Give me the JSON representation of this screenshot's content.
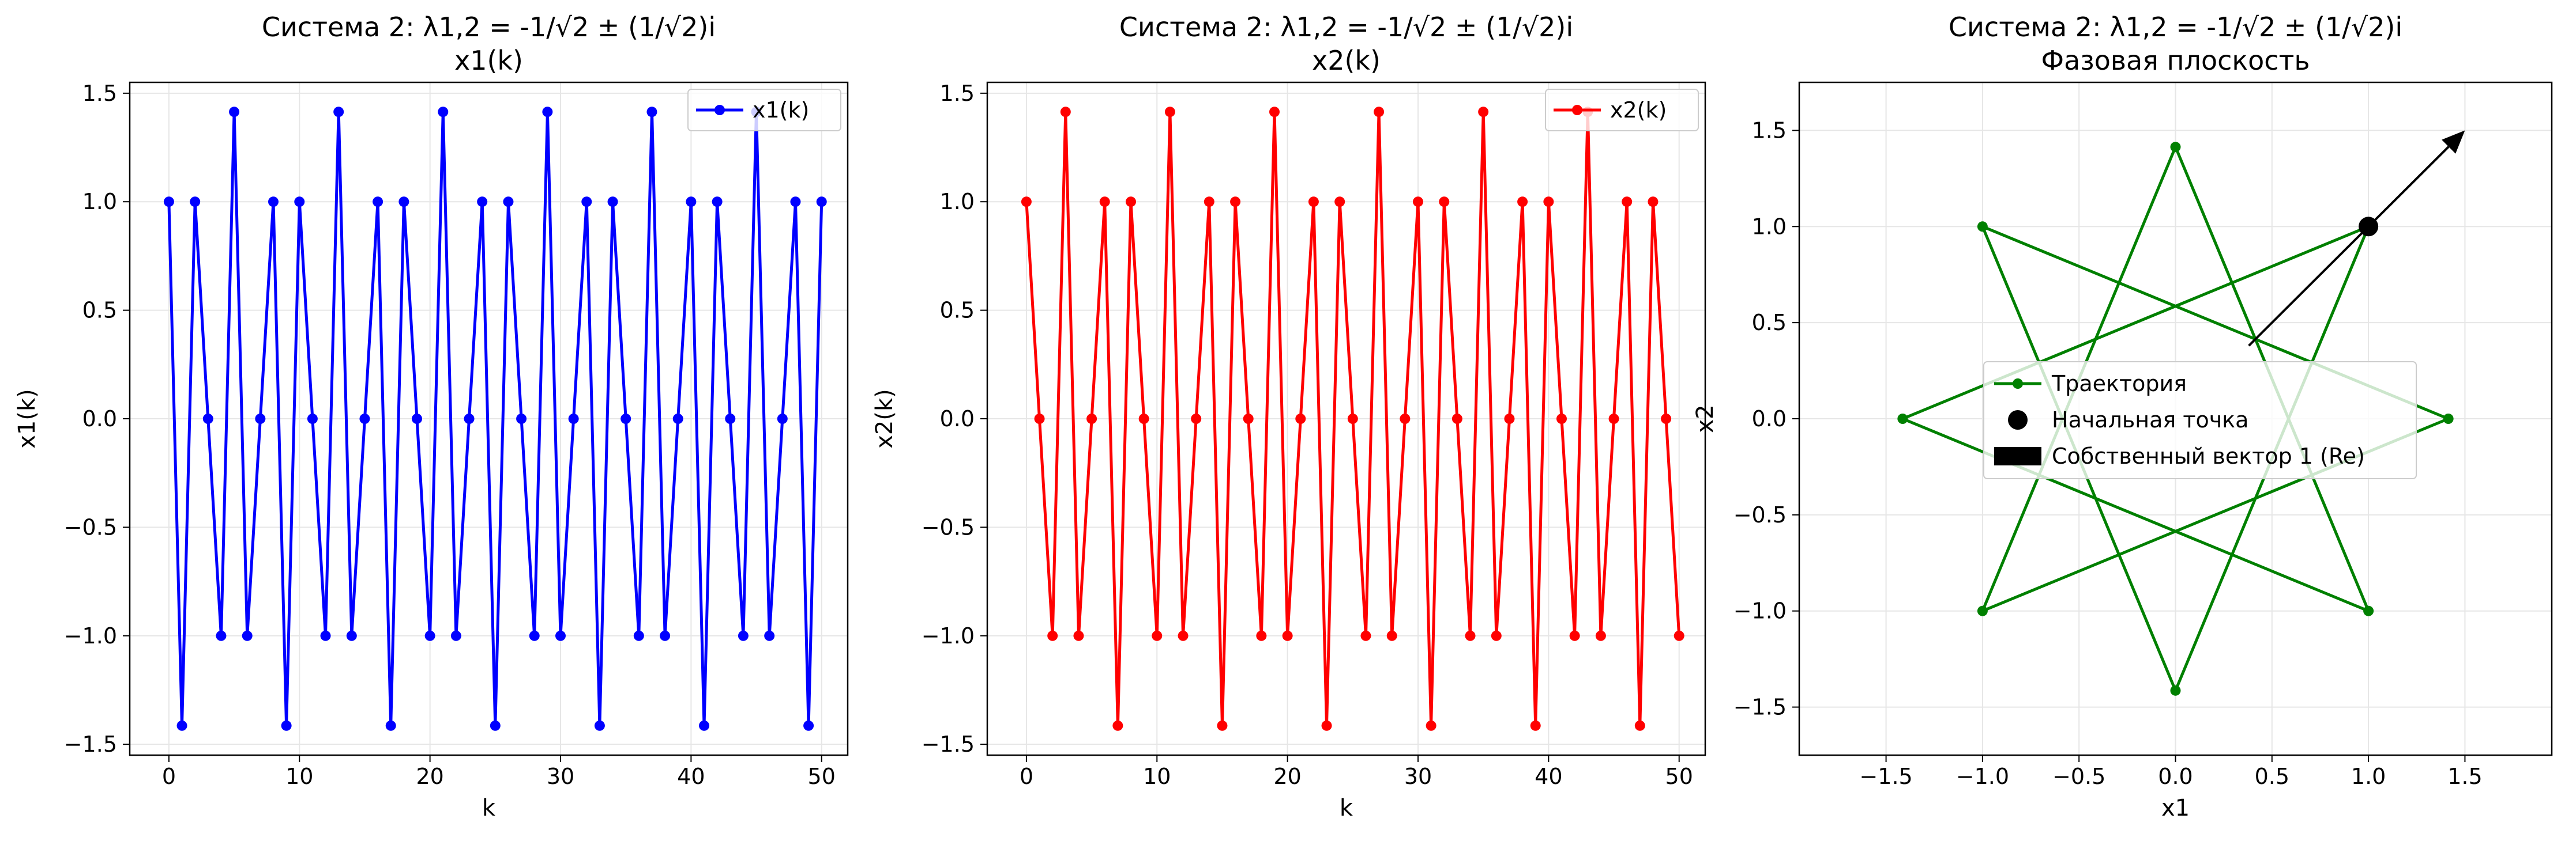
{
  "chart_data": [
    {
      "type": "line",
      "title": "Система 2: λ1,2 = -1/√2 ± (1/√2)i",
      "subtitle": "x1(k)",
      "xlabel": "k",
      "ylabel": "x1(k)",
      "xlim": [
        -3,
        52
      ],
      "ylim": [
        -1.55,
        1.55
      ],
      "xticks": [
        0,
        10,
        20,
        30,
        40,
        50
      ],
      "yticks": [
        -1.5,
        -1.0,
        -0.5,
        0.0,
        0.5,
        1.0,
        1.5
      ],
      "grid": true,
      "legend_position": "top-right",
      "series": [
        {
          "name": "x1(k)",
          "color": "#0000ff",
          "x": [
            0,
            1,
            2,
            3,
            4,
            5,
            6,
            7,
            8,
            9,
            10,
            11,
            12,
            13,
            14,
            15,
            16,
            17,
            18,
            19,
            20,
            21,
            22,
            23,
            24,
            25,
            26,
            27,
            28,
            29,
            30,
            31,
            32,
            33,
            34,
            35,
            36,
            37,
            38,
            39,
            40,
            41,
            42,
            43,
            44,
            45,
            46,
            47,
            48,
            49,
            50
          ],
          "y": [
            1,
            -1.414,
            1,
            0,
            -1,
            1.414,
            -1,
            0,
            1,
            -1.414,
            1,
            0,
            -1,
            1.414,
            -1,
            0,
            1,
            -1.414,
            1,
            0,
            -1,
            1.414,
            -1,
            0,
            1,
            -1.414,
            1,
            0,
            -1,
            1.414,
            -1,
            0,
            1,
            -1.414,
            1,
            0,
            -1,
            1.414,
            -1,
            0,
            1,
            -1.414,
            1,
            0,
            -1,
            1.414,
            -1,
            0,
            1,
            -1.414,
            1
          ]
        }
      ]
    },
    {
      "type": "line",
      "title": "Система 2: λ1,2 = -1/√2 ± (1/√2)i",
      "subtitle": "x2(k)",
      "xlabel": "k",
      "ylabel": "x2(k)",
      "xlim": [
        -3,
        52
      ],
      "ylim": [
        -1.55,
        1.55
      ],
      "xticks": [
        0,
        10,
        20,
        30,
        40,
        50
      ],
      "yticks": [
        -1.5,
        -1.0,
        -0.5,
        0.0,
        0.5,
        1.0,
        1.5
      ],
      "grid": true,
      "legend_position": "top-right",
      "series": [
        {
          "name": "x2(k)",
          "color": "#ff0000",
          "x": [
            0,
            1,
            2,
            3,
            4,
            5,
            6,
            7,
            8,
            9,
            10,
            11,
            12,
            13,
            14,
            15,
            16,
            17,
            18,
            19,
            20,
            21,
            22,
            23,
            24,
            25,
            26,
            27,
            28,
            29,
            30,
            31,
            32,
            33,
            34,
            35,
            36,
            37,
            38,
            39,
            40,
            41,
            42,
            43,
            44,
            45,
            46,
            47,
            48,
            49,
            50
          ],
          "y": [
            1,
            0,
            -1,
            1.414,
            -1,
            0,
            1,
            -1.414,
            1,
            0,
            -1,
            1.414,
            -1,
            0,
            1,
            -1.414,
            1,
            0,
            -1,
            1.414,
            -1,
            0,
            1,
            -1.414,
            1,
            0,
            -1,
            1.414,
            -1,
            0,
            1,
            -1.414,
            1,
            0,
            -1,
            1.414,
            -1,
            0,
            1,
            -1.414,
            1,
            0,
            -1,
            1.414,
            -1,
            0,
            1,
            -1.414,
            1,
            0,
            -1
          ]
        }
      ]
    },
    {
      "type": "scatter",
      "title": "Система 2: λ1,2 = -1/√2 ± (1/√2)i",
      "subtitle": "Фазовая плоскость",
      "xlabel": "x1",
      "ylabel": "x2",
      "xlim": [
        -1.95,
        1.95
      ],
      "ylim": [
        -1.75,
        1.75
      ],
      "xticks": [
        -1.5,
        -1.0,
        -0.5,
        0.0,
        0.5,
        1.0,
        1.5
      ],
      "yticks": [
        -1.5,
        -1.0,
        -0.5,
        0.0,
        0.5,
        1.0,
        1.5
      ],
      "grid": true,
      "legend_position": "center",
      "series": [
        {
          "name": "Траектория",
          "color": "#008000",
          "x": [
            1,
            -1.414,
            1,
            0,
            -1,
            1.414,
            -1,
            0,
            1
          ],
          "y": [
            1,
            0,
            -1,
            1.414,
            -1,
            0,
            1,
            -1.414,
            1
          ]
        }
      ],
      "start_point": {
        "label": "Начальная точка",
        "x": 1,
        "y": 1,
        "color": "#000000"
      },
      "eigenvector": {
        "label": "Собственный вектор 1 (Re)",
        "x0": 0.38,
        "y0": 0.38,
        "x1": 1.5,
        "y1": 1.5,
        "color": "#000000"
      }
    }
  ]
}
